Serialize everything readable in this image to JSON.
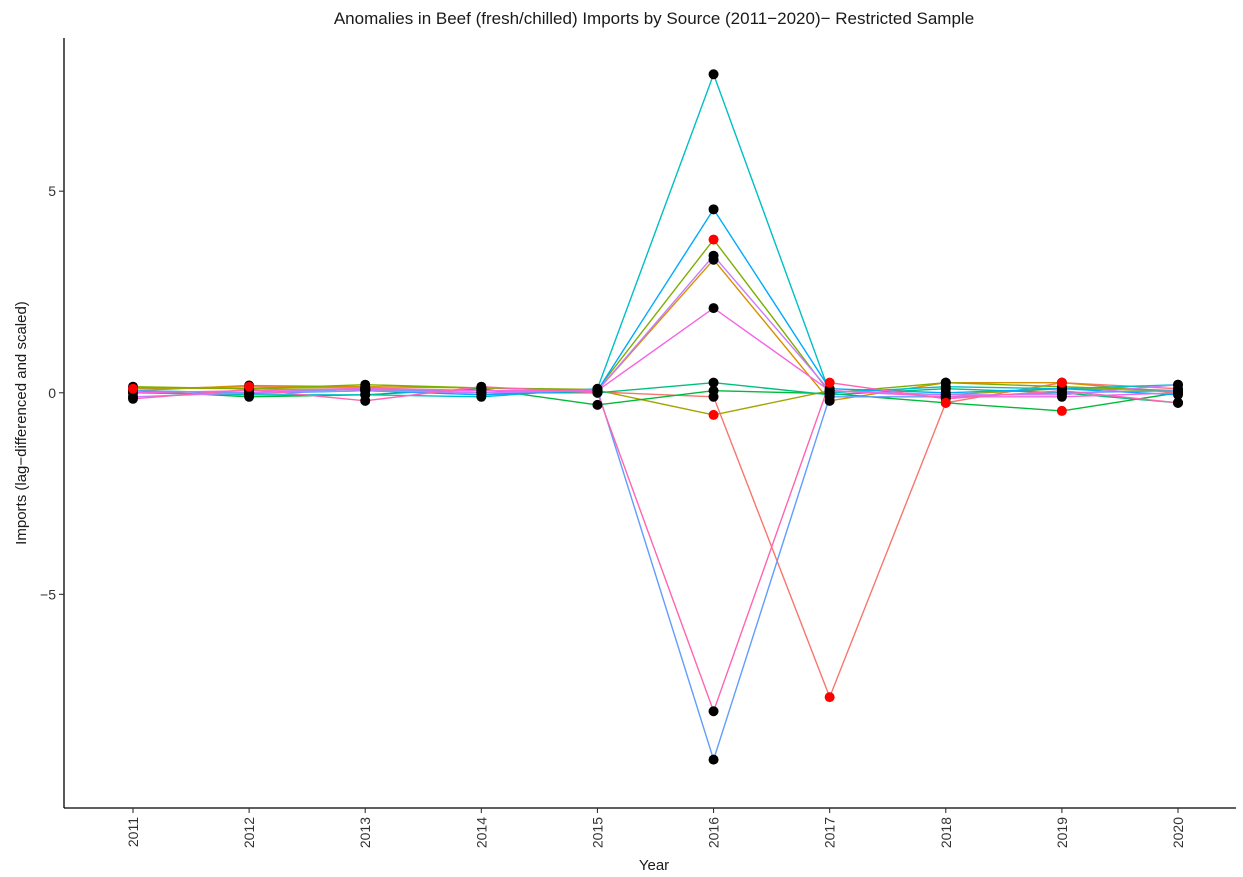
{
  "chart_data": {
    "type": "line",
    "title": "Anomalies in Beef (fresh/chilled) Imports by Source (2011−2020)− Restricted Sample",
    "xlabel": "Year",
    "ylabel": "Imports (lag−differenced and scaled)",
    "x": [
      "2011",
      "2012",
      "2013",
      "2014",
      "2015",
      "2016",
      "2017",
      "2018",
      "2019",
      "2020"
    ],
    "y_ticks": [
      -5,
      0,
      5
    ],
    "y_tick_labels": [
      "−5",
      "0",
      "5"
    ],
    "ylim": [
      -10.3,
      8.8
    ],
    "grid": false,
    "legend": "none",
    "point_colors": {
      "normal": "#000000",
      "anomaly": "#ff0000"
    },
    "series": [
      {
        "color": "#F8766D",
        "values": [
          0.1,
          0.15,
          0.12,
          0.05,
          0.02,
          -0.1,
          -7.55,
          -0.25,
          0.25,
          0.1
        ],
        "anomaly": [
          true,
          true,
          false,
          false,
          false,
          false,
          true,
          true,
          true,
          false
        ]
      },
      {
        "color": "#D89000",
        "values": [
          0.05,
          0.18,
          0.15,
          0.12,
          0.05,
          3.3,
          -0.2,
          0.25,
          0.25,
          0.0
        ],
        "anomaly": [
          false,
          false,
          false,
          false,
          false,
          false,
          false,
          false,
          false,
          false
        ]
      },
      {
        "color": "#A3A500",
        "values": [
          0.12,
          0.1,
          0.08,
          0.05,
          0.06,
          -0.55,
          0.05,
          -0.05,
          0.1,
          0.05
        ],
        "anomaly": [
          false,
          false,
          false,
          false,
          false,
          true,
          false,
          false,
          false,
          false
        ]
      },
      {
        "color": "#7CAE00",
        "values": [
          0.15,
          0.1,
          0.2,
          0.12,
          0.08,
          3.8,
          0.0,
          0.25,
          0.15,
          0.05
        ],
        "anomaly": [
          false,
          false,
          false,
          false,
          false,
          true,
          false,
          false,
          false,
          false
        ]
      },
      {
        "color": "#00BA38",
        "values": [
          0.05,
          -0.1,
          -0.05,
          0.1,
          -0.3,
          0.05,
          -0.02,
          -0.25,
          -0.45,
          0.0
        ],
        "anomaly": [
          false,
          false,
          false,
          false,
          false,
          false,
          false,
          true,
          true,
          false
        ]
      },
      {
        "color": "#00BF7D",
        "values": [
          0.05,
          0.0,
          0.05,
          0.0,
          0.0,
          0.25,
          -0.05,
          0.1,
          0.0,
          -0.25
        ],
        "anomaly": [
          false,
          false,
          false,
          false,
          false,
          false,
          false,
          false,
          false,
          false
        ]
      },
      {
        "color": "#00BFC4",
        "values": [
          0.0,
          -0.05,
          -0.05,
          -0.1,
          0.1,
          7.9,
          0.0,
          0.15,
          0.1,
          0.2
        ],
        "anomaly": [
          false,
          false,
          false,
          false,
          false,
          false,
          false,
          false,
          false,
          false
        ]
      },
      {
        "color": "#00A9FF",
        "values": [
          0.05,
          -0.02,
          0.05,
          -0.05,
          0.05,
          4.55,
          0.1,
          0.0,
          0.1,
          -0.05
        ],
        "anomaly": [
          false,
          false,
          false,
          false,
          false,
          false,
          false,
          false,
          false,
          false
        ]
      },
      {
        "color": "#619CFF",
        "values": [
          0.05,
          0.0,
          0.1,
          0.0,
          0.08,
          -9.1,
          -0.1,
          -0.1,
          0.0,
          0.05
        ],
        "anomaly": [
          false,
          false,
          false,
          false,
          false,
          false,
          false,
          false,
          false,
          false
        ]
      },
      {
        "color": "#C77CFF",
        "values": [
          -0.1,
          0.0,
          0.05,
          0.0,
          0.05,
          3.4,
          0.05,
          -0.05,
          -0.05,
          0.2
        ],
        "anomaly": [
          false,
          false,
          false,
          false,
          false,
          false,
          false,
          false,
          false,
          false
        ]
      },
      {
        "color": "#F564E3",
        "values": [
          0.0,
          0.05,
          0.1,
          0.05,
          0.05,
          2.1,
          0.05,
          -0.1,
          -0.1,
          0.0
        ],
        "anomaly": [
          false,
          false,
          false,
          false,
          false,
          false,
          false,
          false,
          false,
          false
        ]
      },
      {
        "color": "#FF64B0",
        "values": [
          -0.15,
          0.08,
          -0.2,
          0.15,
          0.0,
          -7.9,
          0.25,
          -0.15,
          0.05,
          -0.25
        ],
        "anomaly": [
          false,
          false,
          false,
          false,
          false,
          false,
          true,
          false,
          false,
          false
        ]
      }
    ]
  }
}
